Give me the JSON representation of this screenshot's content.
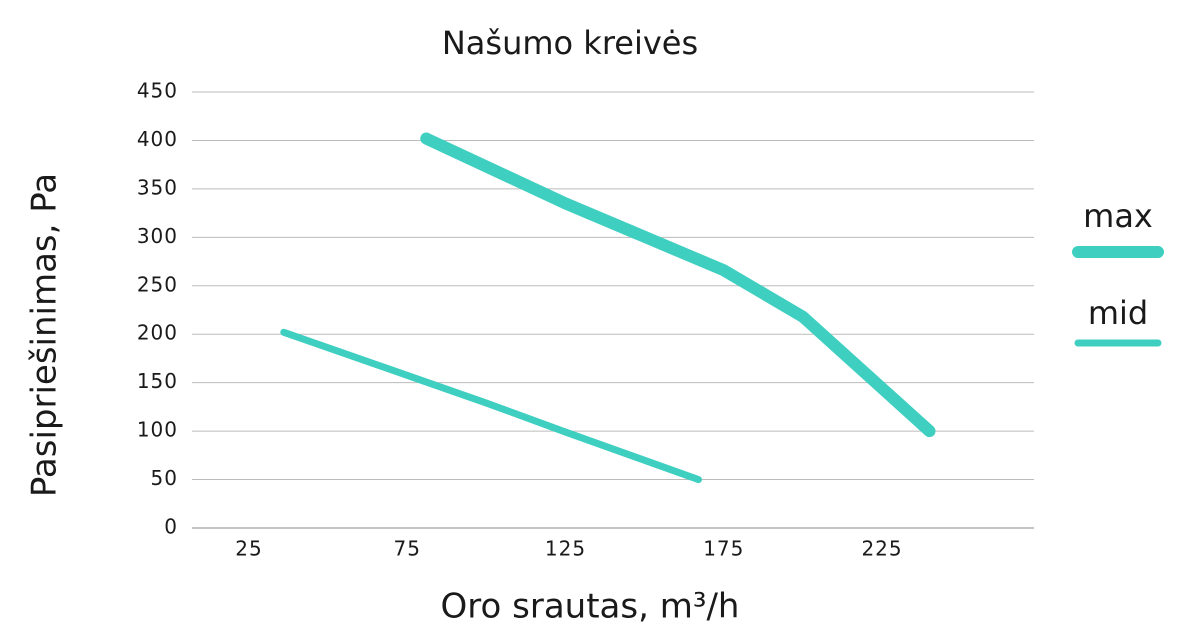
{
  "chart_data": {
    "type": "line",
    "title": "Našumo kreivės",
    "x_label": "Oro srautas, m³/h",
    "y_label": "Pasipriešinimas, Pa",
    "series": [
      {
        "name": "max",
        "color": "#3ecfc0",
        "line_width": 12,
        "x": [
          81,
          125,
          175,
          200,
          240
        ],
        "values": [
          402,
          335,
          266,
          218,
          100
        ]
      },
      {
        "name": "mid",
        "color": "#3ecfc0",
        "line_width": 7,
        "x": [
          36,
          100,
          125,
          167
        ],
        "values": [
          202,
          129,
          99,
          50
        ]
      }
    ],
    "xlim": [
      7,
      273
    ],
    "xticks": [
      25,
      75,
      125,
      175,
      225
    ],
    "ylim": [
      0,
      450
    ],
    "yticks": [
      0,
      50,
      100,
      150,
      200,
      250,
      300,
      350,
      400,
      450
    ],
    "grid": true,
    "legend": "right"
  }
}
